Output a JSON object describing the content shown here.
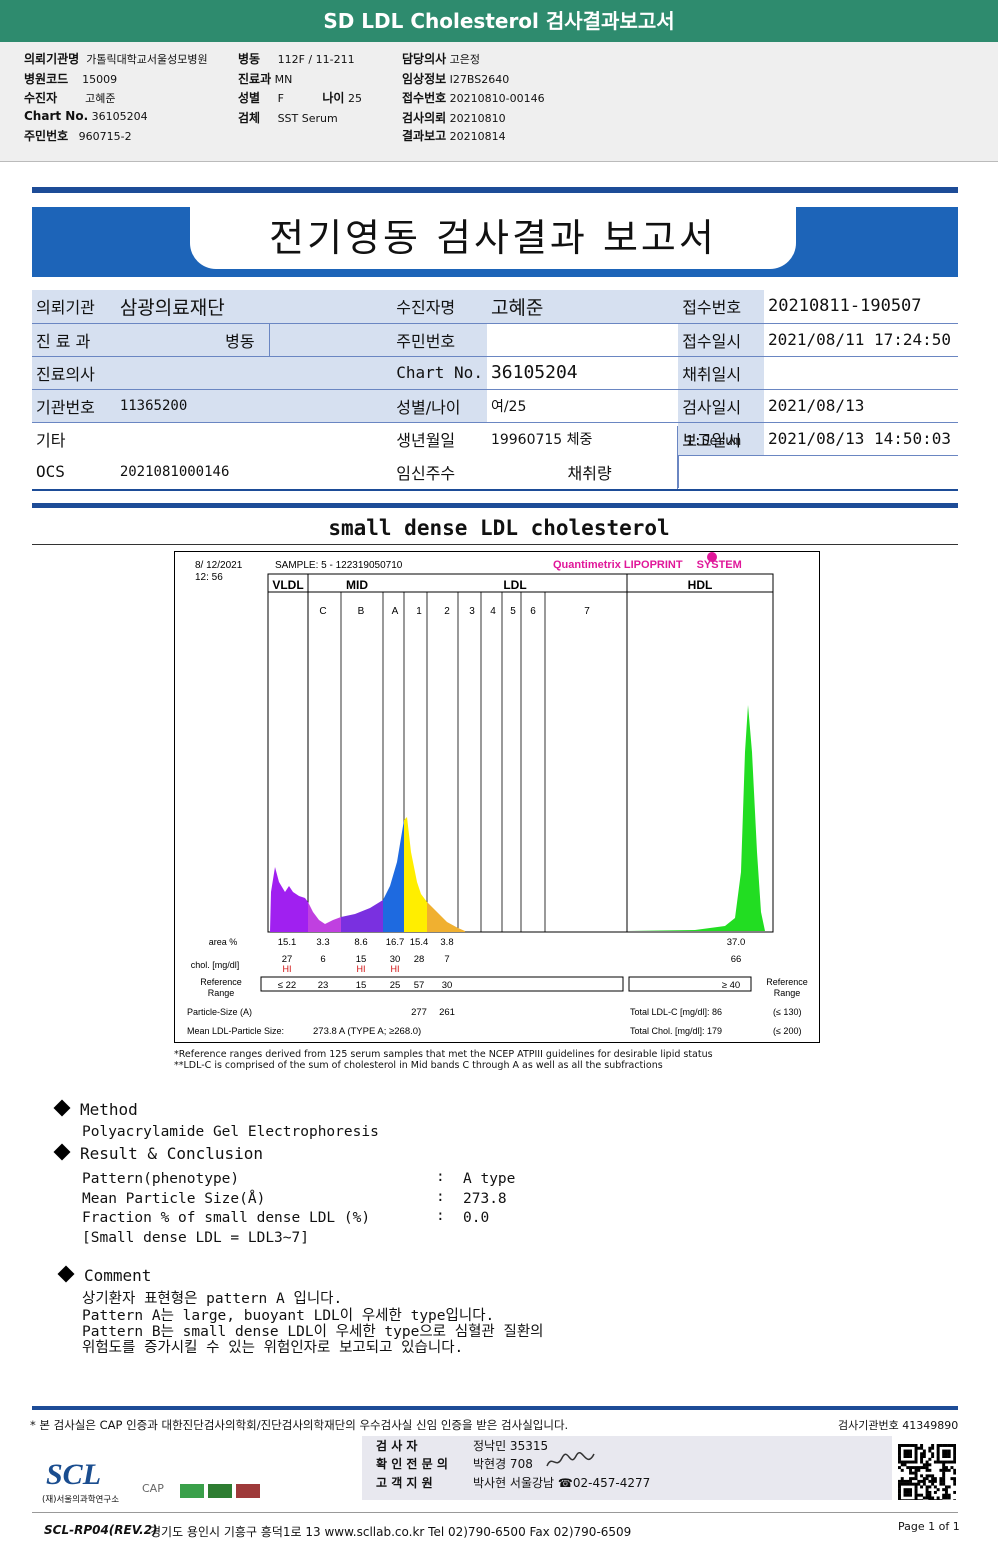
{
  "top_title": "SD LDL Cholesterol 검사결과보고서",
  "header": {
    "f1": {
      "label": "의뢰기관명",
      "value": "가톨릭대학교서울성모병원"
    },
    "f2": {
      "label": "병원코드",
      "value": "15009"
    },
    "f3": {
      "label": "수진자",
      "value": "고혜준"
    },
    "f4": {
      "label": "Chart No.",
      "value": "36105204"
    },
    "f5": {
      "label": "주민번호",
      "value": "960715-2"
    },
    "f6": {
      "label": "병동",
      "value": "112F / 11-211"
    },
    "f7": {
      "label": "진료과",
      "value": "MN"
    },
    "f8": {
      "label": "성별",
      "value": "F"
    },
    "f8b": {
      "label": "나이",
      "value": "25"
    },
    "f9": {
      "label": "검체",
      "value": "SST Serum"
    },
    "f10": {
      "label": "담당의사",
      "value": "고은정"
    },
    "f11": {
      "label": "임상정보",
      "value": "I27BS2640"
    },
    "f12": {
      "label": "접수번호",
      "value": "20210810-00146"
    },
    "f13": {
      "label": "검사의뢰",
      "value": "20210810"
    },
    "f14": {
      "label": "결과보고",
      "value": "20210814"
    }
  },
  "report_title": "전기영동 검사결과 보고서",
  "info": {
    "institution_label": "의뢰기관",
    "institution": "삼광의료재단",
    "dept_label": "진 료 과",
    "ward": "병동",
    "doctor_label": "진료의사",
    "code_label": "기관번호",
    "code": "11365200",
    "etc_label": "기타",
    "ocs_label": "OCS",
    "ocs": "2021081000146",
    "patient_label": "수진자명",
    "patient": "고혜준",
    "rrn_label": "주민번호",
    "chart_label": "Chart No.",
    "chart": "36105204",
    "sexage_label": "성별/나이",
    "sexage": "여/25",
    "birth_label": "생년월일",
    "birth": "19960715",
    "weight_label": "체중",
    "preg_label": "임신주수",
    "volume_label": "채취량",
    "receipt_no_label": "접수번호",
    "receipt_no": "20210811-190507",
    "receipt_dt_label": "접수일시",
    "receipt_dt": "2021/08/11 17:24:50",
    "collect_label": "채취일시",
    "test_label": "검사일시",
    "test_dt": "2021/08/13",
    "report_label": "보고일시",
    "report_dt": "2021/08/13 14:50:03",
    "specimen": "1:Serum"
  },
  "section_title": "small dense LDL cholesterol",
  "chart_data": {
    "type": "area",
    "datetime": [
      "8/ 12/2021",
      "12: 56"
    ],
    "sample": "SAMPLE:    5 - 122319050710",
    "brand": "Quantimetrix LIPOPRINT",
    "brand_suffix": "SYSTEM",
    "groups": [
      "VLDL",
      "MID",
      "LDL",
      "HDL"
    ],
    "bands": [
      "C",
      "B",
      "A",
      "1",
      "2",
      "3",
      "4",
      "5",
      "6",
      "7"
    ],
    "row_labels": {
      "area": "area %",
      "chol": "chol. [mg/dl]",
      "ref": "Reference Range",
      "size": "Particle-Size (A)",
      "mean": "Mean LDL-Particle Size:"
    },
    "area": [
      "15.1",
      "3.3",
      "8.6",
      "16.7",
      "15.4",
      "3.8",
      "37.0"
    ],
    "chol": [
      "27",
      "6",
      "15",
      "30",
      "28",
      "7",
      "66"
    ],
    "hi_flags": [
      "HI",
      "HI",
      "HI"
    ],
    "ref": [
      "≤ 22",
      "23",
      "15",
      "25",
      "57",
      "30",
      "≥  40"
    ],
    "size": [
      "277",
      "261"
    ],
    "mean_size": "273.8  A    (TYPE A; ≥268.0)",
    "total_ldl": "Total LDL-C  [mg/dl]:   86",
    "total_ldl_ref": "(≤ 130)",
    "total_chol": "Total Chol.  [mg/dl]:   179",
    "total_chol_ref": "(≤ 200)",
    "ref_range_label": "Reference Range",
    "colors": {
      "vldl": "#a020f0",
      "midc": "#c040e0",
      "mid": "#7a30e0",
      "midA": "#1e6ae0",
      "ldl1": "#ffee00",
      "ldl2": "#f0b030",
      "hdl": "#22dd22"
    },
    "footnotes": [
      "*Reference ranges derived from 125 serum samples that met the NCEP ATPIII guidelines for desirable lipid status",
      "**LDL-C is comprised of the sum of cholesterol in Mid bands C through A as well as all the subfractions"
    ]
  },
  "method": {
    "title": "Method",
    "text": "Polyacrylamide Gel Electrophoresis"
  },
  "result": {
    "title": "Result & Conclusion",
    "rows": [
      {
        "k": "Pattern(phenotype)",
        "v": "A type"
      },
      {
        "k": "Mean Particle Size(Å)",
        "v": "273.8"
      },
      {
        "k": "Fraction % of small dense LDL (%)",
        "v": "0.0"
      }
    ],
    "note": "[Small dense LDL = LDL3~7]",
    "colon": ":"
  },
  "comment": {
    "title": "Comment",
    "lines": [
      "상기환자 표현형은 pattern A 입니다.",
      "Pattern A는 large, buoyant LDL이 우세한 type입니다.",
      "Pattern B는 small dense LDL이 우세한 type으로 심혈관 질환의",
      "위험도를 증가시킬 수 있는 위험인자로 보고되고 있습니다."
    ]
  },
  "footer": {
    "cert": "* 본 검사실은 CAP 인증과 대한진단검사의학회/진단검사의학재단의 우수검사실 신임 인증을 받은 검사실입니다.",
    "inst_no": "검사기관번호  41349890",
    "examiner_label": "검    사    자",
    "examiner": "정낙민 35315",
    "confirm_label": "확 인 전 문 의",
    "confirm": "박현경 708",
    "customer_label": "고  객  지  원",
    "customer": "박사현 서울강남 ☎02-457-4277",
    "logo": "SCL",
    "logo_sub": "(재)서울의과학연구소",
    "cap": "CAP",
    "form": "SCL-RP04(REV.2)",
    "address": "경기도 용인시 기흥구 흥덕1로 13  www.scllab.co.kr  Tel 02)790-6500  Fax 02)790-6509",
    "page": "Page 1 of 1"
  }
}
